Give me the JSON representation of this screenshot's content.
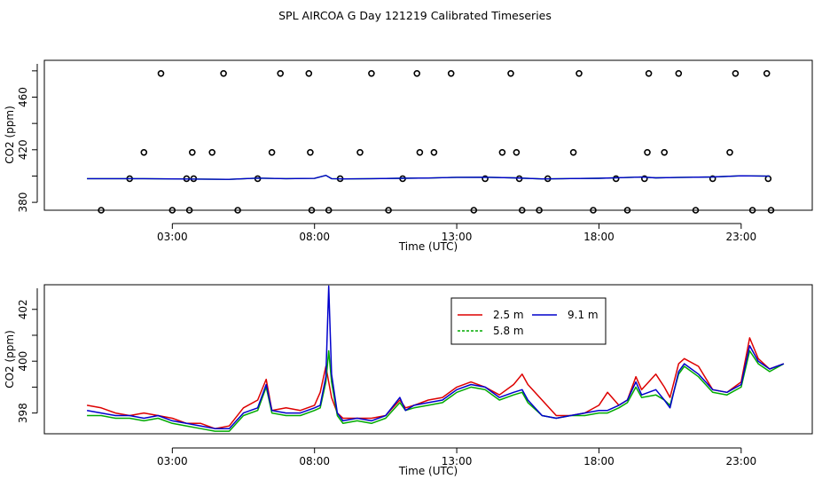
{
  "title": "SPL AIRCOA G  Day 121219  Calibrated Timeseries",
  "colors": {
    "s1": "#dd0000",
    "s2": "#00aa00",
    "s3": "#0000cc",
    "marker": "#000000"
  },
  "chart_data": [
    {
      "type": "scatter+line",
      "xlabel": "Time (UTC)",
      "ylabel": "CO2 (ppm)",
      "xlim": [
        -1.5,
        25.5
      ],
      "ylim": [
        374,
        488
      ],
      "x_ticks": [
        3,
        8,
        13,
        18,
        23
      ],
      "x_tick_labels": [
        "03:00",
        "08:00",
        "13:00",
        "18:00",
        "23:00"
      ],
      "y_ticks": [
        380,
        420,
        460
      ],
      "y_tick_labels": [
        "380",
        "420",
        "460"
      ],
      "line": {
        "name": "CO2",
        "x": [
          0,
          1,
          2,
          3,
          4,
          5,
          6,
          7,
          8,
          8.4,
          8.6,
          9,
          10,
          11,
          12,
          13,
          14,
          15,
          16,
          17,
          18,
          19,
          19.5,
          20,
          21,
          22,
          23,
          24
        ],
        "y": [
          398,
          398,
          398,
          397.8,
          397.7,
          397.5,
          398.4,
          398,
          398.2,
          400.5,
          398,
          397.8,
          398,
          398.3,
          398.5,
          399,
          399.1,
          398.6,
          397.8,
          398.1,
          398.3,
          398.9,
          399.2,
          398.6,
          399,
          399.3,
          400.2,
          399.9
        ]
      },
      "markers": {
        "x": [
          0.5,
          1.5,
          2.0,
          2.6,
          3.0,
          3.5,
          3.6,
          3.7,
          3.75,
          4.4,
          4.8,
          5.3,
          6.0,
          6.5,
          6.8,
          7.8,
          7.85,
          7.9,
          8.5,
          8.9,
          9.6,
          10.0,
          10.6,
          11.1,
          11.6,
          11.7,
          12.2,
          12.8,
          13.6,
          14.0,
          14.6,
          14.9,
          15.1,
          15.2,
          15.3,
          15.9,
          16.2,
          17.1,
          17.3,
          17.8,
          18.6,
          19.0,
          19.6,
          19.7,
          19.75,
          20.3,
          20.8,
          21.4,
          22.0,
          22.6,
          22.8,
          23.4,
          23.9,
          23.95,
          24.05
        ],
        "y": [
          374,
          398,
          418,
          478,
          374,
          398,
          374,
          418,
          398,
          418,
          478,
          374,
          398,
          418,
          478,
          478,
          418,
          374,
          374,
          398,
          418,
          478,
          374,
          398,
          478,
          418,
          418,
          478,
          374,
          398,
          418,
          478,
          418,
          398,
          374,
          374,
          398,
          418,
          478,
          374,
          398,
          374,
          398,
          418,
          478,
          418,
          478,
          374,
          398,
          418,
          478,
          374,
          478,
          398,
          374
        ]
      }
    },
    {
      "type": "line",
      "xlabel": "Time (UTC)",
      "ylabel": "CO2 (ppm)",
      "xlim": [
        -1.5,
        25.5
      ],
      "ylim": [
        397.2,
        402.95
      ],
      "x_ticks": [
        3,
        8,
        13,
        18,
        23
      ],
      "x_tick_labels": [
        "03:00",
        "08:00",
        "13:00",
        "18:00",
        "23:00"
      ],
      "y_ticks": [
        398,
        400,
        402
      ],
      "y_tick_labels": [
        "398",
        "400",
        "402"
      ],
      "legend": {
        "position": "top-center",
        "entries": [
          "2.5 m",
          "9.1 m",
          "5.8 m"
        ]
      },
      "x": [
        0,
        0.5,
        1,
        1.5,
        2,
        2.5,
        3,
        3.5,
        4,
        4.5,
        5,
        5.5,
        6,
        6.3,
        6.5,
        7,
        7.5,
        8,
        8.2,
        8.4,
        8.5,
        8.6,
        8.8,
        9,
        9.5,
        10,
        10.5,
        11,
        11.2,
        11.5,
        12,
        12.5,
        13,
        13.5,
        14,
        14.5,
        15,
        15.3,
        15.5,
        16,
        16.5,
        17,
        17.5,
        18,
        18.3,
        18.7,
        19,
        19.3,
        19.5,
        20,
        20.3,
        20.5,
        20.8,
        21,
        21.5,
        22,
        22.5,
        23,
        23.3,
        23.6,
        24,
        24.5
      ],
      "series": [
        {
          "name": "2.5 m",
          "values": [
            398.3,
            398.2,
            398,
            397.9,
            398,
            397.9,
            397.8,
            397.6,
            397.6,
            397.4,
            397.5,
            398.2,
            398.5,
            399.3,
            398.1,
            398.2,
            398.1,
            398.3,
            398.8,
            399.8,
            399.2,
            398.6,
            398,
            397.8,
            397.8,
            397.8,
            397.9,
            398.5,
            398.2,
            398.3,
            398.5,
            398.6,
            399,
            399.2,
            399,
            398.7,
            399.1,
            399.5,
            399.1,
            398.5,
            397.9,
            397.9,
            398,
            398.3,
            398.8,
            398.3,
            398.5,
            399.4,
            398.9,
            399.5,
            399,
            398.6,
            399.9,
            400.1,
            399.8,
            398.9,
            398.8,
            399.2,
            400.9,
            400.1,
            399.7,
            399.9
          ]
        },
        {
          "name": "5.8 m",
          "values": [
            397.9,
            397.9,
            397.8,
            397.8,
            397.7,
            397.8,
            397.6,
            397.5,
            397.4,
            397.3,
            397.3,
            397.9,
            398.1,
            399,
            398,
            397.9,
            397.9,
            398.1,
            398.2,
            399.2,
            400.4,
            399.2,
            397.9,
            397.6,
            397.7,
            397.6,
            397.8,
            398.4,
            398.1,
            398.2,
            398.3,
            398.4,
            398.8,
            399,
            398.9,
            398.5,
            398.7,
            398.8,
            398.4,
            397.9,
            397.8,
            397.9,
            397.9,
            398,
            398,
            398.2,
            398.4,
            399,
            398.6,
            398.7,
            398.5,
            398.3,
            399.5,
            399.8,
            399.4,
            398.8,
            398.7,
            399,
            400.4,
            399.9,
            399.6,
            399.9
          ]
        },
        {
          "name": "9.1 m",
          "values": [
            398.1,
            398,
            397.9,
            397.9,
            397.8,
            397.9,
            397.7,
            397.6,
            397.5,
            397.4,
            397.4,
            398,
            398.2,
            399.1,
            398.1,
            398,
            398,
            398.2,
            398.3,
            399.4,
            402.9,
            399.5,
            398,
            397.7,
            397.8,
            397.7,
            397.9,
            398.6,
            398.1,
            398.3,
            398.4,
            398.5,
            398.9,
            399.1,
            399,
            398.6,
            398.8,
            398.9,
            398.5,
            397.9,
            397.8,
            397.9,
            398,
            398.1,
            398.1,
            398.3,
            398.5,
            399.2,
            398.7,
            398.9,
            398.5,
            398.2,
            399.6,
            399.9,
            399.5,
            398.9,
            398.8,
            399.1,
            400.6,
            400,
            399.7,
            399.9
          ]
        }
      ]
    }
  ]
}
